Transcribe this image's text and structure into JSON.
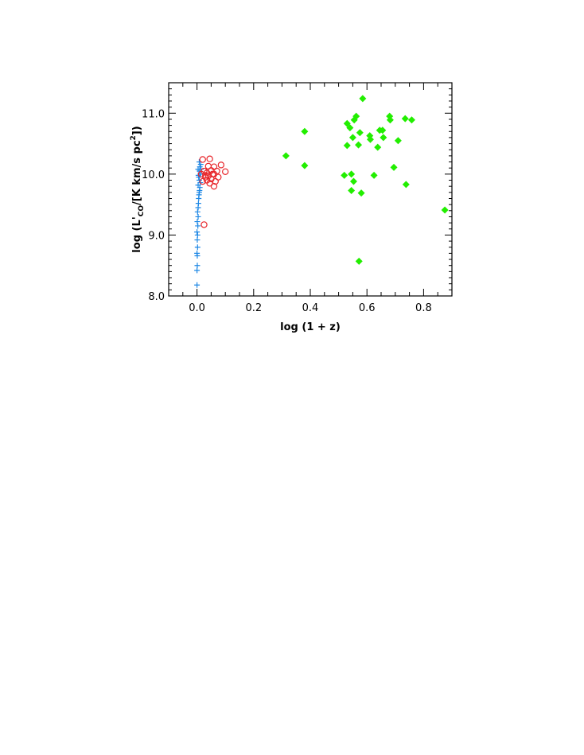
{
  "chart_data": {
    "type": "scatter",
    "title": "",
    "xlabel": "log (1 + z)",
    "ylabel": {
      "prefix": "log (L'",
      "sub": "CO",
      "middle": "/[K km/s pc",
      "sup": "2",
      "suffix": "])"
    },
    "xlim": [
      -0.1,
      0.9
    ],
    "ylim": [
      8.0,
      11.5
    ],
    "xticks": [
      0.0,
      0.2,
      0.4,
      0.6,
      0.8
    ],
    "xtick_labels": [
      "0.0",
      "0.2",
      "0.4",
      "0.6",
      "0.8"
    ],
    "yticks": [
      8.0,
      9.0,
      10.0,
      11.0
    ],
    "ytick_labels": [
      "8.0",
      "9.0",
      "10.0",
      "11.0"
    ],
    "grid": false,
    "legend": null,
    "series": [
      {
        "marker": "plus",
        "color": "#1e88e5",
        "points": [
          [
            0.0,
            8.18
          ],
          [
            0.0,
            8.42
          ],
          [
            0.001,
            8.5
          ],
          [
            0.001,
            8.66
          ],
          [
            0.0,
            8.7
          ],
          [
            0.002,
            8.8
          ],
          [
            0.001,
            8.92
          ],
          [
            0.002,
            9.0
          ],
          [
            0.0,
            9.05
          ],
          [
            0.003,
            9.15
          ],
          [
            0.001,
            9.22
          ],
          [
            0.004,
            9.3
          ],
          [
            0.002,
            9.38
          ],
          [
            0.004,
            9.45
          ],
          [
            0.005,
            9.52
          ],
          [
            0.006,
            9.6
          ],
          [
            0.007,
            9.66
          ],
          [
            0.008,
            9.7
          ],
          [
            0.009,
            9.73
          ],
          [
            0.01,
            9.78
          ],
          [
            0.004,
            9.82
          ],
          [
            0.012,
            9.86
          ],
          [
            0.008,
            9.9
          ],
          [
            0.006,
            9.95
          ],
          [
            0.005,
            9.98
          ],
          [
            0.012,
            10.0
          ],
          [
            0.009,
            10.05
          ],
          [
            0.014,
            10.08
          ],
          [
            0.01,
            10.12
          ],
          [
            0.013,
            10.16
          ],
          [
            0.008,
            10.2
          ],
          [
            0.004,
            10.08
          ]
        ]
      },
      {
        "marker": "circle-open",
        "color": "#e8262b",
        "points": [
          [
            0.025,
            9.17
          ],
          [
            0.02,
            10.24
          ],
          [
            0.045,
            10.25
          ],
          [
            0.04,
            10.13
          ],
          [
            0.06,
            10.12
          ],
          [
            0.085,
            10.15
          ],
          [
            0.1,
            10.04
          ],
          [
            0.07,
            10.05
          ],
          [
            0.055,
            10.0
          ],
          [
            0.03,
            9.98
          ],
          [
            0.04,
            9.97
          ],
          [
            0.05,
            9.92
          ],
          [
            0.035,
            9.9
          ],
          [
            0.065,
            9.88
          ],
          [
            0.06,
            9.8
          ],
          [
            0.045,
            9.85
          ],
          [
            0.02,
            9.88
          ],
          [
            0.075,
            9.95
          ],
          [
            0.025,
            10.05
          ],
          [
            0.05,
            10.06
          ],
          [
            0.035,
            10.02
          ],
          [
            0.06,
            10.0
          ],
          [
            0.03,
            9.95
          ],
          [
            0.015,
            10.0
          ]
        ]
      },
      {
        "marker": "diamond-filled",
        "color": "#22ee00",
        "points": [
          [
            0.314,
            10.3
          ],
          [
            0.38,
            10.7
          ],
          [
            0.38,
            10.14
          ],
          [
            0.52,
            9.98
          ],
          [
            0.53,
            10.47
          ],
          [
            0.53,
            10.83
          ],
          [
            0.54,
            10.76
          ],
          [
            0.545,
            10.0
          ],
          [
            0.55,
            10.6
          ],
          [
            0.545,
            9.73
          ],
          [
            0.553,
            9.88
          ],
          [
            0.555,
            10.89
          ],
          [
            0.562,
            10.95
          ],
          [
            0.57,
            10.48
          ],
          [
            0.575,
            10.68
          ],
          [
            0.58,
            9.69
          ],
          [
            0.585,
            11.24
          ],
          [
            0.572,
            8.57
          ],
          [
            0.61,
            10.63
          ],
          [
            0.612,
            10.57
          ],
          [
            0.625,
            9.98
          ],
          [
            0.638,
            10.44
          ],
          [
            0.645,
            10.72
          ],
          [
            0.655,
            10.72
          ],
          [
            0.658,
            10.6
          ],
          [
            0.68,
            10.95
          ],
          [
            0.682,
            10.89
          ],
          [
            0.695,
            10.11
          ],
          [
            0.71,
            10.55
          ],
          [
            0.735,
            10.91
          ],
          [
            0.738,
            9.83
          ],
          [
            0.758,
            10.89
          ],
          [
            0.875,
            9.41
          ]
        ]
      }
    ]
  }
}
